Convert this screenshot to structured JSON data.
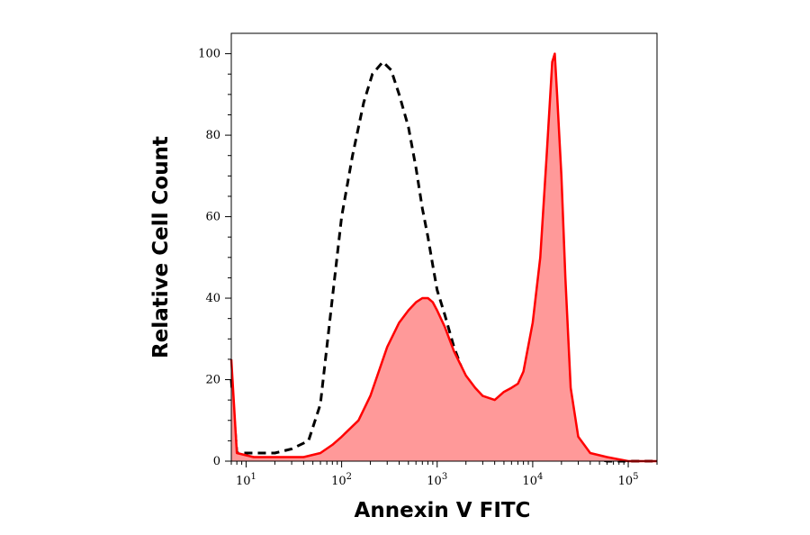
{
  "chart_data": {
    "type": "area",
    "title": "",
    "xlabel": "Annexin V FITC",
    "ylabel": "Relative Cell Count",
    "x_scale": "log",
    "xlim": [
      7,
      200000
    ],
    "ylim": [
      0,
      105
    ],
    "grid": false,
    "legend": "none",
    "y_ticks": [
      0,
      20,
      40,
      60,
      80,
      100
    ],
    "x_ticks": [
      {
        "value": 10,
        "base": "10",
        "exp": "1"
      },
      {
        "value": 100,
        "base": "10",
        "exp": "2"
      },
      {
        "value": 1000,
        "base": "10",
        "exp": "3"
      },
      {
        "value": 10000,
        "base": "10",
        "exp": "4"
      },
      {
        "value": 100000,
        "base": "10",
        "exp": "5"
      }
    ],
    "series": [
      {
        "style": "dashed-outline",
        "color": "#000000",
        "points": [
          [
            7,
            20
          ],
          [
            8,
            2
          ],
          [
            12,
            2
          ],
          [
            20,
            2
          ],
          [
            30,
            3
          ],
          [
            45,
            5
          ],
          [
            60,
            14
          ],
          [
            80,
            40
          ],
          [
            100,
            60
          ],
          [
            130,
            75
          ],
          [
            170,
            88
          ],
          [
            210,
            95
          ],
          [
            270,
            98
          ],
          [
            330,
            96
          ],
          [
            400,
            90
          ],
          [
            500,
            82
          ],
          [
            600,
            72
          ],
          [
            700,
            62
          ],
          [
            800,
            55
          ],
          [
            900,
            48
          ],
          [
            1000,
            42
          ],
          [
            1200,
            36
          ],
          [
            1500,
            28
          ],
          [
            2000,
            20
          ],
          [
            3000,
            14
          ],
          [
            4000,
            10
          ],
          [
            5000,
            8
          ],
          [
            7000,
            6
          ],
          [
            10000,
            6
          ],
          [
            14000,
            8
          ],
          [
            18000,
            9
          ],
          [
            22000,
            9
          ],
          [
            26000,
            7
          ],
          [
            30000,
            3
          ],
          [
            40000,
            1
          ],
          [
            60000,
            0
          ],
          [
            200000,
            0
          ]
        ]
      },
      {
        "style": "filled",
        "color": "#ff0000",
        "fill": "#ff9999",
        "points": [
          [
            7,
            25
          ],
          [
            8,
            2
          ],
          [
            12,
            1
          ],
          [
            20,
            1
          ],
          [
            40,
            1
          ],
          [
            60,
            2
          ],
          [
            80,
            4
          ],
          [
            100,
            6
          ],
          [
            150,
            10
          ],
          [
            200,
            16
          ],
          [
            300,
            28
          ],
          [
            400,
            34
          ],
          [
            500,
            37
          ],
          [
            600,
            39
          ],
          [
            700,
            40
          ],
          [
            800,
            40
          ],
          [
            900,
            39
          ],
          [
            1000,
            37
          ],
          [
            1200,
            33
          ],
          [
            1500,
            27
          ],
          [
            2000,
            21
          ],
          [
            2500,
            18
          ],
          [
            3000,
            16
          ],
          [
            4000,
            15
          ],
          [
            5000,
            17
          ],
          [
            6000,
            18
          ],
          [
            7000,
            19
          ],
          [
            8000,
            22
          ],
          [
            10000,
            34
          ],
          [
            12000,
            50
          ],
          [
            14000,
            75
          ],
          [
            16000,
            98
          ],
          [
            17000,
            100
          ],
          [
            18000,
            90
          ],
          [
            20000,
            70
          ],
          [
            22000,
            45
          ],
          [
            25000,
            18
          ],
          [
            30000,
            6
          ],
          [
            40000,
            2
          ],
          [
            60000,
            1
          ],
          [
            100000,
            0
          ],
          [
            200000,
            0
          ]
        ]
      }
    ]
  }
}
